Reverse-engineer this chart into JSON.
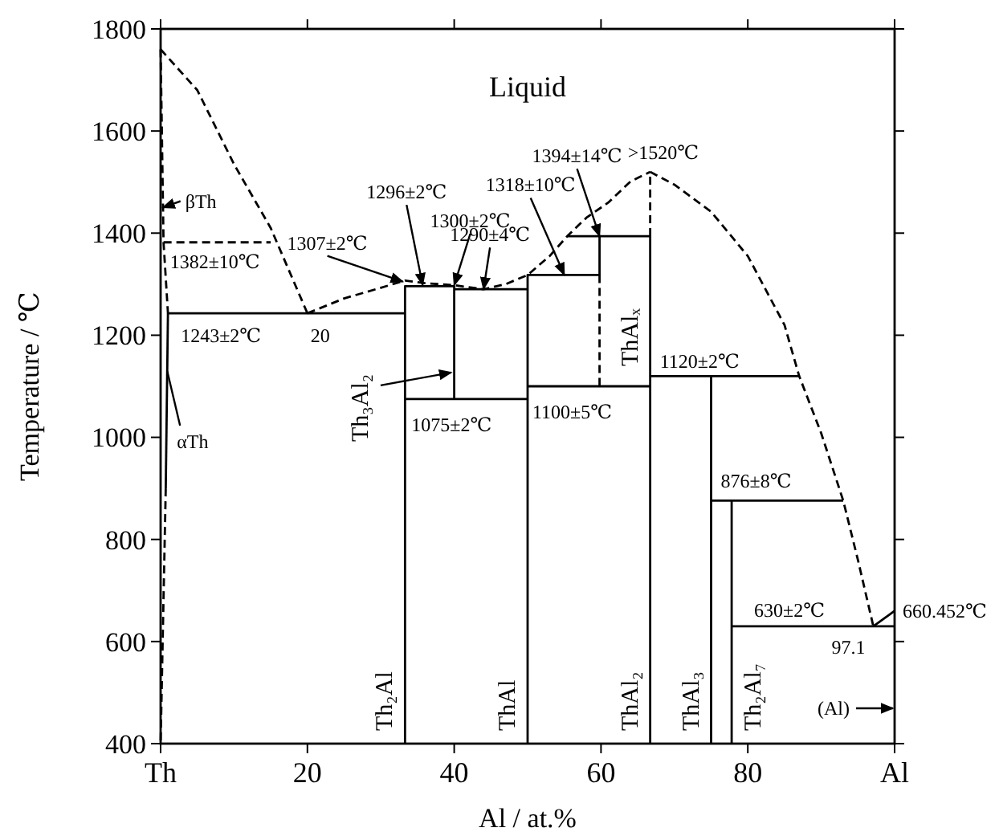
{
  "chart_data": {
    "type": "line",
    "xlabel": "Al / at.%",
    "ylabel": "Temperature / ℃",
    "xlim": [
      0,
      100
    ],
    "ylim": [
      400,
      1800
    ],
    "xticks": [
      {
        "value": 0,
        "label": "Th"
      },
      20,
      40,
      60,
      80,
      {
        "value": 100,
        "label": "Al"
      }
    ],
    "yticks": [
      400,
      600,
      800,
      1000,
      1200,
      1400,
      1600,
      1800
    ],
    "grid": false,
    "marker": "none",
    "series": [
      {
        "color": "#000000",
        "line_style": "dashed",
        "x": [
          0,
          5,
          10,
          15,
          20
        ],
        "values": [
          1760,
          1680,
          1535,
          1410,
          1243
        ]
      },
      {
        "color": "#000000",
        "line_style": "dashed",
        "x": [
          20,
          25,
          30,
          33.3,
          36,
          40,
          44,
          47,
          50,
          53,
          55.4,
          58,
          61,
          64,
          66.7
        ],
        "values": [
          1243,
          1272,
          1293,
          1307,
          1302,
          1298,
          1290,
          1300,
          1318,
          1355,
          1394,
          1430,
          1460,
          1501,
          1520
        ]
      },
      {
        "color": "#000000",
        "line_style": "dashed",
        "x": [
          66.7,
          70,
          75,
          80,
          85,
          87,
          90,
          93,
          95,
          97.1
        ],
        "values": [
          1520,
          1495,
          1442,
          1355,
          1220,
          1120,
          1008,
          876,
          760,
          630
        ]
      },
      {
        "color": "#000000",
        "line_style": "dashed",
        "x": [
          0,
          0.4,
          1
        ],
        "values": [
          1760,
          1382,
          1243
        ]
      },
      {
        "color": "#000000",
        "line_style": "dashed",
        "x": [
          0.4,
          15
        ],
        "values": [
          1382,
          1382
        ]
      },
      {
        "color": "#000000",
        "line_style": "solid",
        "x": [
          1,
          0.7
        ],
        "values": [
          1243,
          900
        ]
      },
      {
        "color": "#000000",
        "line_style": "dashed",
        "x": [
          0.7,
          0
        ],
        "values": [
          900,
          400
        ]
      },
      {
        "color": "#000000",
        "line_style": "solid",
        "x": [
          1,
          33.3
        ],
        "values": [
          1243,
          1243
        ]
      },
      {
        "color": "#000000",
        "line_style": "solid",
        "x": [
          33.3,
          33.3,
          40,
          40
        ],
        "values": [
          400,
          1296,
          1296,
          1075
        ]
      },
      {
        "color": "#000000",
        "line_style": "solid",
        "x": [
          33.3,
          50
        ],
        "values": [
          1075,
          1075
        ]
      },
      {
        "color": "#000000",
        "line_style": "solid",
        "x": [
          40,
          50
        ],
        "values": [
          1290,
          1290
        ]
      },
      {
        "color": "#000000",
        "line_style": "solid",
        "x": [
          50,
          50,
          59.8,
          59.8
        ],
        "values": [
          400,
          1318,
          1318,
          1394
        ]
      },
      {
        "color": "#000000",
        "line_style": "dashed",
        "x": [
          59.8,
          59.8
        ],
        "values": [
          1318,
          1100
        ]
      },
      {
        "color": "#000000",
        "line_style": "solid",
        "x": [
          55.4,
          66.7
        ],
        "values": [
          1394,
          1394
        ]
      },
      {
        "color": "#000000",
        "line_style": "solid",
        "x": [
          50,
          66.7
        ],
        "values": [
          1100,
          1100
        ]
      },
      {
        "color": "#000000",
        "line_style": "solid",
        "x": [
          66.7,
          66.7
        ],
        "values": [
          400,
          1394
        ]
      },
      {
        "color": "#000000",
        "line_style": "dashed",
        "x": [
          66.7,
          66.7
        ],
        "values": [
          1394,
          1520
        ]
      },
      {
        "color": "#000000",
        "line_style": "solid",
        "x": [
          66.7,
          87
        ],
        "values": [
          1120,
          1120
        ]
      },
      {
        "color": "#000000",
        "line_style": "solid",
        "x": [
          75,
          75
        ],
        "values": [
          400,
          1120
        ]
      },
      {
        "color": "#000000",
        "line_style": "solid",
        "x": [
          75,
          93
        ],
        "values": [
          876,
          876
        ]
      },
      {
        "color": "#000000",
        "line_style": "solid",
        "x": [
          77.8,
          77.8
        ],
        "values": [
          400,
          876
        ]
      },
      {
        "color": "#000000",
        "line_style": "solid",
        "x": [
          77.8,
          100
        ],
        "values": [
          630,
          630
        ]
      },
      {
        "color": "#000000",
        "line_style": "solid",
        "x": [
          97.1,
          100
        ],
        "values": [
          630,
          660
        ]
      }
    ],
    "annotations": [
      "Liquid",
      {
        "text": "βTh",
        "x": 0.3,
        "y": 1450
      },
      {
        "text": "1382±10℃",
        "x": 0.4,
        "y": 1382
      },
      {
        "text": "1243±2℃",
        "x": 1,
        "y": 1243
      },
      {
        "text": "20",
        "x": 20,
        "y": 1243
      },
      {
        "text": "αTh",
        "x": 0.9,
        "y": 1130
      },
      {
        "text": "1307±2℃",
        "x": 33,
        "y": 1305
      },
      {
        "text": "1296±2℃",
        "x": 35.7,
        "y": 1298
      },
      {
        "text": "1300±2℃",
        "x": 40,
        "y": 1298
      },
      {
        "text": "1290±4℃",
        "x": 44,
        "y": 1290
      },
      {
        "text": "1318±10℃",
        "x": 55,
        "y": 1318
      },
      {
        "text": "1394±14℃",
        "x": 59.8,
        "y": 1394
      },
      {
        "text": ">1520℃",
        "x": 66.7,
        "y": 1520
      },
      {
        "text": "1075±2℃",
        "x": 33.3,
        "y": 1075
      },
      {
        "text": "1100±5℃",
        "x": 50,
        "y": 1100
      },
      {
        "text": "1120±2℃",
        "x": 66.7,
        "y": 1120
      },
      {
        "text": "876±8℃",
        "x": 75,
        "y": 876
      },
      {
        "text": "630±2℃",
        "x": 77.8,
        "y": 630
      },
      {
        "text": "97.1",
        "x": 97.1,
        "y": 630
      },
      {
        "text": "660.452℃",
        "x": 100,
        "y": 660
      },
      "(Al)",
      {
        "text": "Th₃Al₂",
        "x": 39.6,
        "y": 1127
      },
      {
        "text": "Th₂Al",
        "x": 33.3,
        "y": 400
      },
      {
        "text": "ThAl",
        "x": 50,
        "y": 400
      },
      {
        "text": "ThAl₂",
        "x": 66.7,
        "y": 400
      },
      {
        "text": "ThAl₃",
        "x": 75,
        "y": 400
      },
      {
        "text": "Th₂Al₇",
        "x": 77.8,
        "y": 400
      },
      {
        "text": "ThAlₓ",
        "x": 66.7,
        "y": 1196
      }
    ]
  }
}
